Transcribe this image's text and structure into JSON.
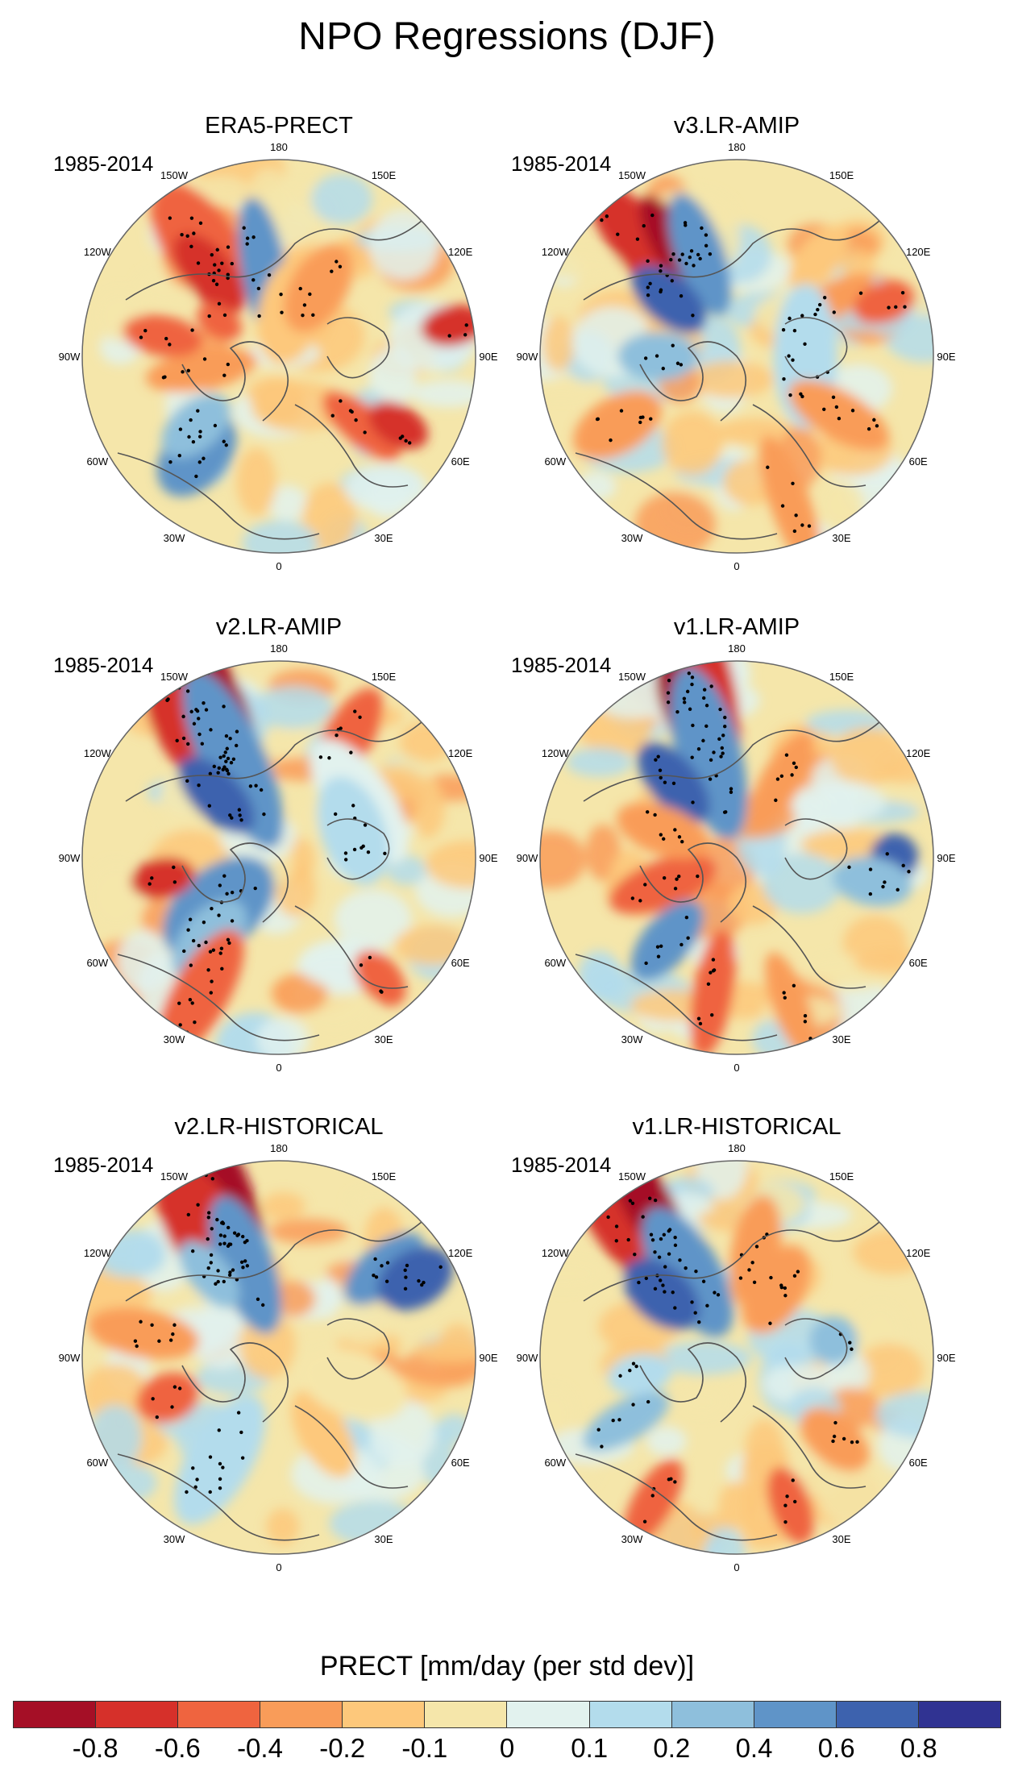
{
  "figure_title": "NPO Regressions (DJF)",
  "panels": [
    {
      "title": "ERA5-PRECT",
      "period": "1985-2014"
    },
    {
      "title": "v3.LR-AMIP",
      "period": "1985-2014"
    },
    {
      "title": "v2.LR-AMIP",
      "period": "1985-2014"
    },
    {
      "title": "v1.LR-AMIP",
      "period": "1985-2014"
    },
    {
      "title": "v2.LR-HISTORICAL",
      "period": "1985-2014"
    },
    {
      "title": "v1.LR-HISTORICAL",
      "period": "1985-2014"
    }
  ],
  "longitude_labels": [
    "180",
    "150E",
    "120E",
    "90E",
    "60E",
    "30E",
    "0",
    "30W",
    "60W",
    "90W",
    "120W",
    "150W"
  ],
  "colorbar": {
    "title": "PRECT [mm/day (per std dev)]",
    "tick_labels": [
      "-0.8",
      "-0.6",
      "-0.4",
      "-0.2",
      "-0.1",
      "0",
      "0.1",
      "0.2",
      "0.4",
      "0.6",
      "0.8"
    ],
    "colors": [
      "#a50f26",
      "#d6302a",
      "#ef643f",
      "#f99c59",
      "#fdc87b",
      "#f5e6aa",
      "#e2f2ee",
      "#b3dcec",
      "#8ebfdc",
      "#5f94c8",
      "#3d62ae",
      "#303392"
    ]
  },
  "chart_data": {
    "type": "map",
    "projection": "north polar stereographic",
    "variable": "PRECT",
    "units": "mm/day (per std dev)",
    "levels": [
      -0.8,
      -0.6,
      -0.4,
      -0.2,
      -0.1,
      0,
      0.1,
      0.2,
      0.4,
      0.6,
      0.8
    ],
    "season": "DJF"
  }
}
